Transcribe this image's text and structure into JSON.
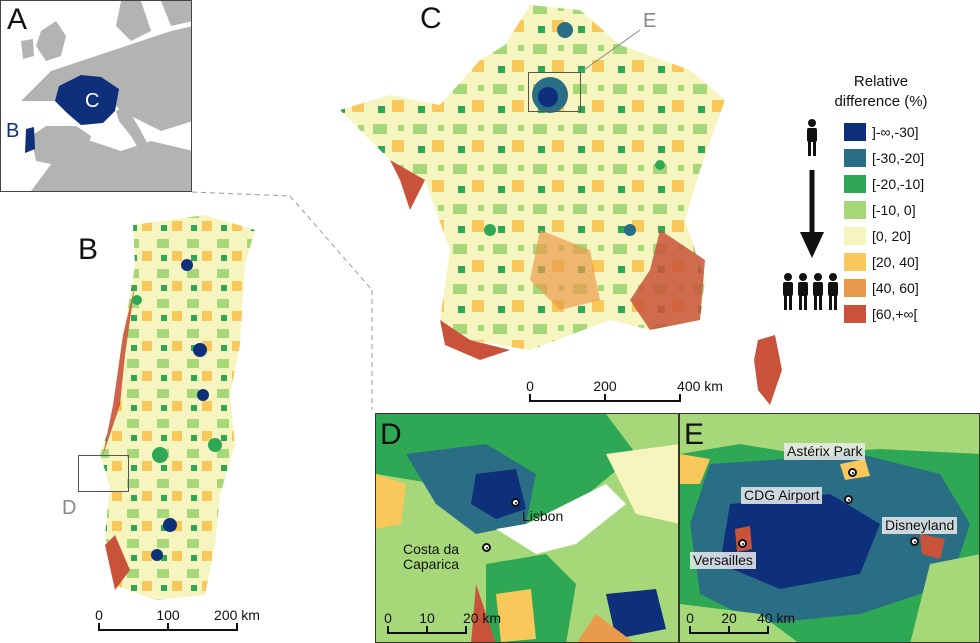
{
  "panels": {
    "a": "A",
    "b": "B",
    "c": "C",
    "d": "D",
    "e": "E"
  },
  "inset_a": {
    "label_b": "B",
    "label_c": "C"
  },
  "panel_b": {
    "box_label": "D",
    "scale": [
      "0",
      "100",
      "200 km"
    ]
  },
  "panel_c": {
    "box_label": "E",
    "scale": [
      "0",
      "200",
      "400 km"
    ]
  },
  "panel_d": {
    "places": [
      "Lisbon",
      "Costa da Caparica"
    ],
    "scale": [
      "0",
      "10",
      "20 km"
    ]
  },
  "panel_e": {
    "places": [
      "Astérix Park",
      "CDG Airport",
      "Disneyland",
      "Versailles"
    ],
    "scale": [
      "0",
      "20",
      "40 km"
    ]
  },
  "legend": {
    "title_line1": "Relative",
    "title_line2": "difference (%)",
    "items": [
      {
        "label": "]-∞,-30]",
        "color": "#0e2f7a"
      },
      {
        "label": "[-30,-20]",
        "color": "#2a6e86"
      },
      {
        "label": "[-20,-10]",
        "color": "#2ea855"
      },
      {
        "label": "[-10, 0]",
        "color": "#a6d87a"
      },
      {
        "label": "[0, 20]",
        "color": "#f7f5bf"
      },
      {
        "label": "[20, 40]",
        "color": "#f8c85a"
      },
      {
        "label": "[40, 60]",
        "color": "#e99b4b"
      },
      {
        "label": "[60,+∞[",
        "color": "#c9533a"
      }
    ]
  },
  "colors": {
    "sea_gray": "#ffffff",
    "land_gray": "#b3b3b3",
    "highlight": "#0e2f7a"
  }
}
